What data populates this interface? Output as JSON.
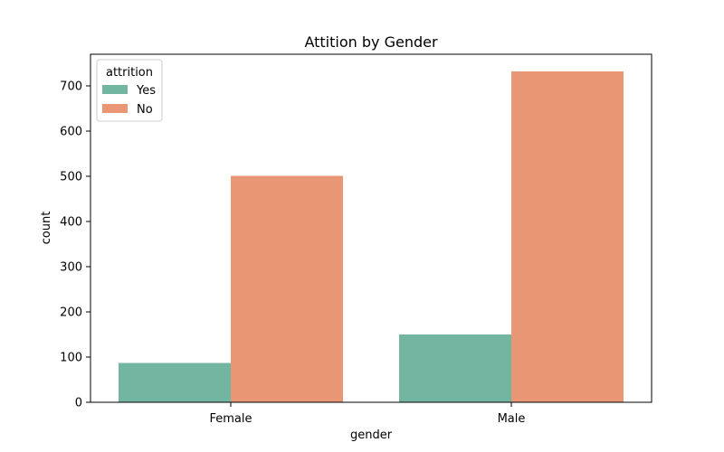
{
  "chart_data": {
    "type": "bar",
    "title": "Attition by Gender",
    "xlabel": "gender",
    "ylabel": "count",
    "categories": [
      "Female",
      "Male"
    ],
    "series": [
      {
        "name": "Yes",
        "values": [
          87,
          150
        ],
        "color": "#72b6a1"
      },
      {
        "name": "No",
        "values": [
          501,
          732
        ],
        "color": "#e99675"
      }
    ],
    "ylim": [
      0,
      770
    ],
    "yticks": [
      0,
      100,
      200,
      300,
      400,
      500,
      600,
      700
    ],
    "legend": {
      "title": "attrition",
      "position": "top-left"
    },
    "grid": false
  }
}
